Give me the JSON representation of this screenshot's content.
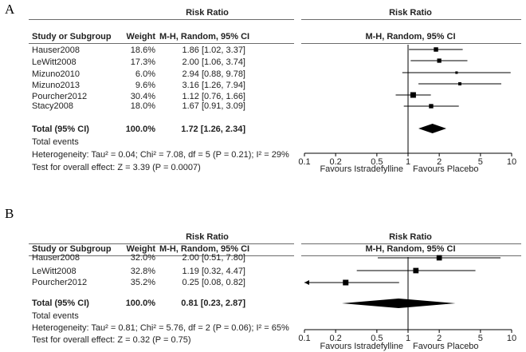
{
  "chart_data": [
    {
      "type": "forest",
      "panel_label": "A",
      "header": {
        "col_group": "Risk Ratio",
        "col_study": "Study or Subgroup",
        "col_weight": "Weight",
        "col_ci": "M-H, Random, 95% CI",
        "plot_group": "Risk Ratio",
        "plot_method": "M-H, Random, 95% CI"
      },
      "studies": [
        {
          "name": "Hauser2008",
          "weight": "18.6%",
          "ci_text": "1.86 [1.02, 3.37]",
          "rr": 1.86,
          "lo": 1.02,
          "hi": 3.37
        },
        {
          "name": "LeWitt2008",
          "weight": "17.3%",
          "ci_text": "2.00 [1.06, 3.74]",
          "rr": 2.0,
          "lo": 1.06,
          "hi": 3.74
        },
        {
          "name": "Mizuno2010",
          "weight": "6.0%",
          "ci_text": "2.94 [0.88, 9.78]",
          "rr": 2.94,
          "lo": 0.88,
          "hi": 9.78
        },
        {
          "name": "Mizuno2013",
          "weight": "9.6%",
          "ci_text": "3.16 [1.26, 7.94]",
          "rr": 3.16,
          "lo": 1.26,
          "hi": 7.94
        },
        {
          "name": "Pourcher2012",
          "weight": "30.4%",
          "ci_text": "1.12 [0.76, 1.66]",
          "rr": 1.12,
          "lo": 0.76,
          "hi": 1.66
        },
        {
          "name": "Stacy2008",
          "weight": "18.0%",
          "ci_text": "1.67 [0.91, 3.09]",
          "rr": 1.67,
          "lo": 0.91,
          "hi": 3.09
        }
      ],
      "total": {
        "label": "Total (95% CI)",
        "weight": "100.0%",
        "ci_text": "1.72 [1.26, 2.34]",
        "rr": 1.72,
        "lo": 1.26,
        "hi": 2.34
      },
      "total_events": "Total events",
      "heterogeneity": "Heterogeneity: Tau² = 0.04; Chi² = 7.08, df = 5 (P = 0.21); I² = 29%",
      "overall_effect": "Test for overall effect: Z = 3.39 (P = 0.0007)",
      "x_scale": "log",
      "xlim": [
        0.1,
        10
      ],
      "x_ticks": [
        0.1,
        0.2,
        0.5,
        1,
        2,
        5,
        10
      ],
      "x_tick_labels": [
        "0.1",
        "0.2",
        "0.5",
        "1",
        "2",
        "5",
        "10"
      ],
      "favours_left": "Favours Istradefylline",
      "favours_right": "Favours Placebo"
    },
    {
      "type": "forest",
      "panel_label": "B",
      "header": {
        "col_group": "Risk Ratio",
        "col_study": "Study or Subgroup",
        "col_weight": "Weight",
        "col_ci": "M-H, Random, 95% CI",
        "plot_group": "Risk Ratio",
        "plot_method": "M-H, Random, 95% CI"
      },
      "studies": [
        {
          "name": "Hauser2008",
          "weight": "32.0%",
          "ci_text": "2.00 [0.51, 7.80]",
          "rr": 2.0,
          "lo": 0.51,
          "hi": 7.8
        },
        {
          "name": "LeWitt2008",
          "weight": "32.8%",
          "ci_text": "1.19 [0.32, 4.47]",
          "rr": 1.19,
          "lo": 0.32,
          "hi": 4.47
        },
        {
          "name": "Pourcher2012",
          "weight": "35.2%",
          "ci_text": "0.25 [0.08, 0.82]",
          "rr": 0.25,
          "lo": 0.08,
          "hi": 0.82
        }
      ],
      "total": {
        "label": "Total (95% CI)",
        "weight": "100.0%",
        "ci_text": "0.81 [0.23, 2.87]",
        "rr": 0.81,
        "lo": 0.23,
        "hi": 2.87
      },
      "total_events": "Total events",
      "heterogeneity": "Heterogeneity: Tau² = 0.81; Chi² = 5.76, df = 2 (P = 0.06); I² = 65%",
      "overall_effect": "Test for overall effect: Z = 0.32 (P = 0.75)",
      "x_scale": "log",
      "xlim": [
        0.1,
        10
      ],
      "x_ticks": [
        0.1,
        0.2,
        0.5,
        1,
        2,
        5,
        10
      ],
      "x_tick_labels": [
        "0.1",
        "0.2",
        "0.5",
        "1",
        "2",
        "5",
        "10"
      ],
      "favours_left": "Favours Istradefylline",
      "favours_right": "Favours Placebo"
    }
  ]
}
